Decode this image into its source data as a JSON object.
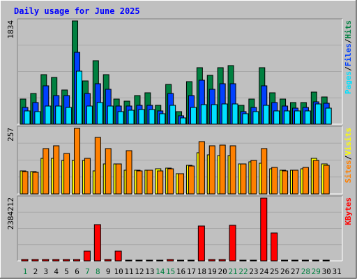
{
  "title": "Daily usage for June 2025",
  "colors": {
    "background": "#c0c0c0",
    "title": "#0000ff",
    "hits": "#008040",
    "files": "#0040ff",
    "pages": "#00e0ff",
    "visits": "#ffff00",
    "sites": "#ff8000",
    "kbytes": "#ff0000",
    "weekend_label": "#008040",
    "weekday_label": "#000000"
  },
  "chart_data": [
    {
      "type": "bar",
      "panel": "hits-files-pages",
      "axis_max_label": "1834",
      "ylim": [
        0,
        1834
      ],
      "legend": [
        {
          "name": "Pages",
          "sep": "/"
        },
        {
          "name": "Files",
          "sep": "/"
        },
        {
          "name": "Hits",
          "sep": ""
        }
      ],
      "categories": [
        "1",
        "2",
        "3",
        "4",
        "5",
        "6",
        "7",
        "8",
        "9",
        "10",
        "11",
        "12",
        "13",
        "14",
        "15",
        "16",
        "17",
        "18",
        "19",
        "20",
        "21",
        "22",
        "23",
        "24",
        "25",
        "26",
        "27",
        "28",
        "29",
        "30",
        "31"
      ],
      "series": [
        {
          "name": "Hits",
          "values": [
            440,
            542,
            874,
            834,
            610,
            1834,
            774,
            1124,
            874,
            451,
            410,
            513,
            552,
            331,
            705,
            221,
            761,
            998,
            868,
            1000,
            1046,
            332,
            451,
            1006,
            552,
            451,
            380,
            380,
            574,
            480,
            0
          ]
        },
        {
          "name": "Files",
          "values": [
            295,
            380,
            680,
            514,
            514,
            1274,
            540,
            714,
            616,
            320,
            320,
            336,
            336,
            240,
            540,
            150,
            514,
            775,
            616,
            714,
            720,
            220,
            295,
            680,
            380,
            318,
            280,
            294,
            398,
            367,
            0
          ]
        },
        {
          "name": "Pages",
          "values": [
            240,
            221,
            316,
            316,
            300,
            941,
            320,
            390,
            320,
            226,
            250,
            260,
            260,
            190,
            340,
            110,
            300,
            352,
            352,
            360,
            360,
            180,
            221,
            336,
            240,
            240,
            240,
            240,
            356,
            280,
            0
          ]
        }
      ]
    },
    {
      "type": "bar",
      "panel": "visits-sites",
      "axis_max_label": "257",
      "ylim": [
        0,
        257
      ],
      "legend": [
        {
          "name": "Sites",
          "sep": "/"
        },
        {
          "name": "Visits",
          "sep": ""
        }
      ],
      "categories": [
        "1",
        "2",
        "3",
        "4",
        "5",
        "6",
        "7",
        "8",
        "9",
        "10",
        "11",
        "12",
        "13",
        "14",
        "15",
        "16",
        "17",
        "18",
        "19",
        "20",
        "21",
        "22",
        "23",
        "24",
        "25",
        "26",
        "27",
        "28",
        "29",
        "30",
        "31"
      ],
      "series": [
        {
          "name": "Visits",
          "values": [
            91,
            88,
            140,
            140,
            130,
            130,
            130,
            91,
            118,
            118,
            93,
            93,
            93,
            98,
            100,
            80,
            111,
            161,
            152,
            150,
            150,
            118,
            125,
            120,
            98,
            94,
            94,
            98,
            140,
            118,
            0
          ]
        },
        {
          "name": "Sites",
          "values": [
            88,
            86,
            177,
            190,
            159,
            257,
            140,
            222,
            177,
            118,
            170,
            91,
            93,
            91,
            98,
            78,
            109,
            206,
            190,
            191,
            190,
            118,
            132,
            177,
            104,
            91,
            94,
            104,
            131,
            113,
            0
          ]
        }
      ]
    },
    {
      "type": "bar",
      "panel": "kbytes",
      "axis_max_label": "2384212",
      "ylim": [
        0,
        2384212
      ],
      "legend": [
        {
          "name": "KBytes",
          "sep": ""
        }
      ],
      "categories": [
        "1",
        "2",
        "3",
        "4",
        "5",
        "6",
        "7",
        "8",
        "9",
        "10",
        "11",
        "12",
        "13",
        "14",
        "15",
        "16",
        "17",
        "18",
        "19",
        "20",
        "21",
        "22",
        "23",
        "24",
        "25",
        "26",
        "27",
        "28",
        "29",
        "30",
        "31"
      ],
      "series": [
        {
          "name": "KBytes",
          "values": [
            40000,
            40000,
            40000,
            40000,
            40000,
            60000,
            360000,
            1380000,
            40000,
            380000,
            30000,
            30000,
            30000,
            30000,
            50000,
            30000,
            30000,
            1330000,
            50000,
            60000,
            1360000,
            30000,
            30000,
            2384212,
            1050000,
            30000,
            30000,
            30000,
            30000,
            30000,
            0
          ]
        }
      ]
    }
  ],
  "x_labels": [
    {
      "text": "1",
      "weekend": true
    },
    {
      "text": "2",
      "weekend": false
    },
    {
      "text": "3",
      "weekend": false
    },
    {
      "text": "4",
      "weekend": false
    },
    {
      "text": "5",
      "weekend": false
    },
    {
      "text": "6",
      "weekend": false
    },
    {
      "text": "7",
      "weekend": true
    },
    {
      "text": "8",
      "weekend": true
    },
    {
      "text": "9",
      "weekend": false
    },
    {
      "text": "10",
      "weekend": false
    },
    {
      "text": "11",
      "weekend": false
    },
    {
      "text": "12",
      "weekend": false
    },
    {
      "text": "13",
      "weekend": false
    },
    {
      "text": "14",
      "weekend": true
    },
    {
      "text": "15",
      "weekend": true
    },
    {
      "text": "16",
      "weekend": false
    },
    {
      "text": "17",
      "weekend": false
    },
    {
      "text": "18",
      "weekend": false
    },
    {
      "text": "19",
      "weekend": false
    },
    {
      "text": "20",
      "weekend": false
    },
    {
      "text": "21",
      "weekend": true
    },
    {
      "text": "22",
      "weekend": true
    },
    {
      "text": "23",
      "weekend": false
    },
    {
      "text": "24",
      "weekend": false
    },
    {
      "text": "25",
      "weekend": false
    },
    {
      "text": "26",
      "weekend": false
    },
    {
      "text": "27",
      "weekend": false
    },
    {
      "text": "28",
      "weekend": true
    },
    {
      "text": "29",
      "weekend": true
    },
    {
      "text": "30",
      "weekend": false
    },
    {
      "text": "31",
      "weekend": false
    }
  ]
}
